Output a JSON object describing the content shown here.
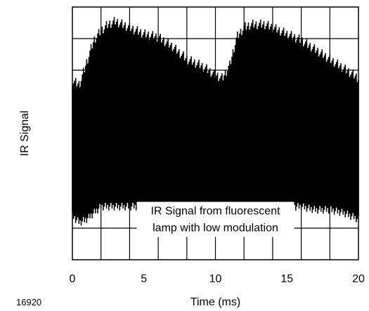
{
  "figure_id": "16920",
  "chart_data": {
    "type": "line",
    "title": "",
    "xlabel": "Time (ms)",
    "ylabel": "IR Signal",
    "xlim": [
      0,
      20
    ],
    "ylim": [
      0,
      8
    ],
    "x_ticks": [
      0,
      5,
      10,
      15,
      20
    ],
    "grid": true,
    "grid_x_step": 2,
    "grid_y_step": 1,
    "annotation": [
      "IR Signal from fluorescent",
      "lamp with low modulation"
    ],
    "series": [
      {
        "color": "#000000",
        "style": "dense-oscillation",
        "envelope_x": [
          0,
          0.5,
          1.0,
          1.5,
          2.0,
          2.5,
          3.0,
          3.5,
          4.0,
          5.0,
          6.0,
          7.0,
          8.0,
          9.0,
          10.0,
          10.5,
          11.0,
          11.5,
          12.0,
          12.5,
          13.0,
          13.5,
          14.0,
          15.0,
          16.0,
          17.0,
          18.0,
          19.0,
          20.0
        ],
        "envelope_upper": [
          5.5,
          5.4,
          6.1,
          6.8,
          7.1,
          7.3,
          7.4,
          7.3,
          7.2,
          7.0,
          6.9,
          6.6,
          6.2,
          6.0,
          5.7,
          5.6,
          6.0,
          6.9,
          7.2,
          7.3,
          7.3,
          7.3,
          7.2,
          7.0,
          6.8,
          6.5,
          6.2,
          5.9,
          5.6
        ],
        "envelope_lower": [
          1.5,
          1.3,
          1.4,
          1.6,
          1.8,
          1.8,
          1.8,
          1.8,
          1.8,
          1.8,
          1.8,
          1.8,
          1.7,
          1.5,
          1.3,
          1.1,
          1.3,
          1.6,
          1.8,
          1.8,
          1.8,
          1.8,
          1.8,
          1.8,
          1.8,
          1.7,
          1.7,
          1.6,
          1.4
        ]
      }
    ]
  }
}
